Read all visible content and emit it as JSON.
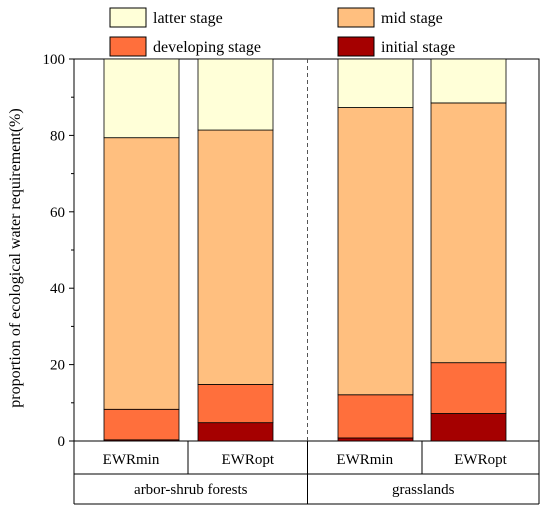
{
  "chart_data": {
    "type": "bar",
    "stacked": true,
    "ylabel": "proportion of ecological water requirement(%)",
    "ylim": [
      0,
      100
    ],
    "yticks": [
      0,
      20,
      40,
      60,
      80,
      100
    ],
    "grid": false,
    "legend_position": "top",
    "categories": [
      "EWRmin",
      "EWRopt",
      "EWRmin",
      "EWRopt"
    ],
    "groups": [
      {
        "label": "arbor-shrub forests",
        "categories": [
          "EWRmin",
          "EWRopt"
        ]
      },
      {
        "label": "grasslands",
        "categories": [
          "EWRmin",
          "EWRopt"
        ]
      }
    ],
    "series": [
      {
        "name": "initial stage",
        "color": "#a50000",
        "values": [
          0.3,
          4.8,
          0.8,
          7.2
        ]
      },
      {
        "name": "developing stage",
        "color": "#ff6f3c",
        "values": [
          8.0,
          10.0,
          11.3,
          13.3
        ]
      },
      {
        "name": "mid stage",
        "color": "#ffbf7f",
        "values": [
          71.1,
          66.6,
          75.2,
          68.0
        ]
      },
      {
        "name": "latter stage",
        "color": "#ffffd8",
        "values": [
          20.6,
          18.6,
          12.7,
          11.5
        ]
      }
    ],
    "legend_order": [
      "latter stage",
      "mid stage",
      "developing stage",
      "initial stage"
    ]
  }
}
